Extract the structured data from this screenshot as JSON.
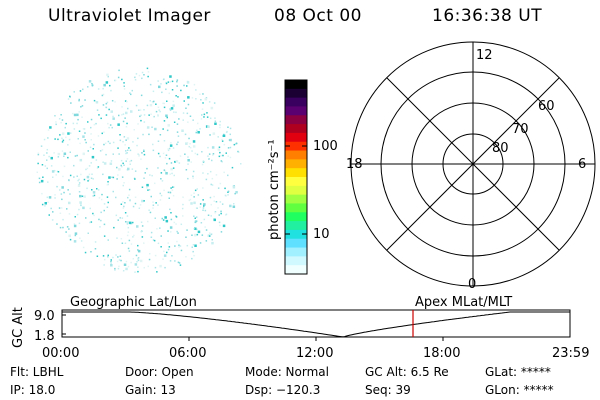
{
  "header": {
    "title": "Ultraviolet Imager",
    "date": "08 Oct 00",
    "time": "16:36:38 UT"
  },
  "colorbar": {
    "unit_label": "photon cm⁻²s⁻¹",
    "ticks": [
      "100",
      "10"
    ],
    "colors": [
      "#000000",
      "#1a0033",
      "#3a0060",
      "#5a0070",
      "#8a0040",
      "#b00020",
      "#e00010",
      "#ff3000",
      "#ff8000",
      "#ffb000",
      "#ffe000",
      "#ffff40",
      "#e0ff40",
      "#a0ff40",
      "#60ff40",
      "#20ff60",
      "#20f0a0",
      "#20e0e0",
      "#60e0ff",
      "#a0f0ff",
      "#d0f8ff",
      "#f0ffff"
    ]
  },
  "polar_plot": {
    "hour_labels": {
      "top": "12",
      "left": "18",
      "right": "6",
      "bottom": "0"
    },
    "lat_labels": [
      "60",
      "70",
      "80"
    ]
  },
  "timeline": {
    "ylabel": "GC Alt",
    "y_ticks": [
      "9.0",
      "1.8"
    ],
    "left_title": "Geographic Lat/Lon",
    "right_title": "Apex MLat/MLT",
    "x_ticks": [
      "00:00",
      "06:00",
      "12:00",
      "18:00",
      "23:59"
    ],
    "marker_color": "#cc0000"
  },
  "footer": {
    "row1": [
      "Flt: LBHL",
      "Door: Open",
      "Mode: Normal",
      "GC Alt: 6.5 Re",
      "GLat: *****"
    ],
    "row2": [
      "IP: 18.0",
      "Gain: 13",
      "Dsp: −120.3",
      "Seq: 39",
      "GLon: *****"
    ]
  }
}
